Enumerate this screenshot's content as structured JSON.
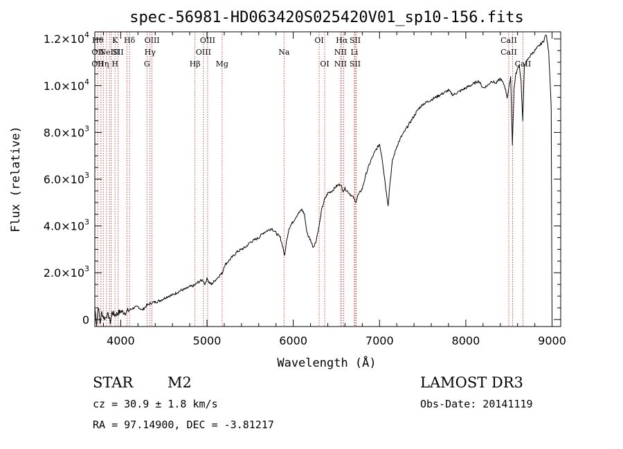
{
  "chart_data": {
    "type": "line",
    "title": "spec-56981-HD063420S025420V01_sp10-156.fits",
    "xlabel": "Wavelength (Å)",
    "ylabel": "Flux (relative)",
    "xlim": [
      3700,
      9100
    ],
    "ylim": [
      -300,
      12300
    ],
    "x_ticks": [
      4000,
      5000,
      6000,
      7000,
      8000,
      9000
    ],
    "x_tick_labels": [
      "4000",
      "5000",
      "6000",
      "7000",
      "8000",
      "9000"
    ],
    "y_ticks": [
      0,
      2000,
      4000,
      6000,
      8000,
      10000,
      12000
    ],
    "y_tick_labels": [
      {
        "mant": "0",
        "exp": ""
      },
      {
        "mant": "2.0×10",
        "exp": "3"
      },
      {
        "mant": "4.0×10",
        "exp": "3"
      },
      {
        "mant": "6.0×10",
        "exp": "3"
      },
      {
        "mant": "8.0×10",
        "exp": "3"
      },
      {
        "mant": "1.0×10",
        "exp": "4"
      },
      {
        "mant": "1.2×10",
        "exp": "4"
      }
    ],
    "line_color": "#000000",
    "marker_color": "#b22222",
    "series": [
      {
        "name": "flux",
        "x": [
          3700,
          3720,
          3740,
          3760,
          3780,
          3800,
          3820,
          3840,
          3860,
          3880,
          3900,
          3930,
          3960,
          4000,
          4050,
          4100,
          4150,
          4200,
          4250,
          4300,
          4350,
          4400,
          4450,
          4500,
          4550,
          4600,
          4650,
          4700,
          4750,
          4800,
          4850,
          4900,
          4950,
          4980,
          5000,
          5020,
          5050,
          5100,
          5150,
          5180,
          5200,
          5250,
          5300,
          5350,
          5400,
          5450,
          5500,
          5550,
          5600,
          5650,
          5700,
          5750,
          5800,
          5850,
          5880,
          5900,
          5920,
          5950,
          6000,
          6050,
          6100,
          6130,
          6150,
          6170,
          6200,
          6230,
          6260,
          6300,
          6330,
          6360,
          6400,
          6450,
          6500,
          6550,
          6570,
          6600,
          6650,
          6700,
          6720,
          6750,
          6800,
          6850,
          6900,
          6950,
          7000,
          7030,
          7060,
          7080,
          7100,
          7120,
          7150,
          7200,
          7250,
          7300,
          7350,
          7400,
          7450,
          7500,
          7550,
          7600,
          7650,
          7700,
          7750,
          7800,
          7850,
          7900,
          7950,
          8000,
          8050,
          8100,
          8150,
          8200,
          8250,
          8300,
          8350,
          8400,
          8450,
          8480,
          8500,
          8520,
          8540,
          8560,
          8580,
          8600,
          8620,
          8640,
          8660,
          8680,
          8700,
          8750,
          8800,
          8850,
          8900,
          8930,
          8960,
          8980,
          8990,
          9000
        ],
        "y": [
          500,
          -200,
          600,
          -150,
          300,
          100,
          50,
          200,
          150,
          -100,
          300,
          200,
          250,
          350,
          300,
          400,
          500,
          550,
          400,
          600,
          700,
          750,
          800,
          900,
          1000,
          1050,
          1150,
          1250,
          1300,
          1400,
          1450,
          1600,
          1700,
          1500,
          1800,
          1600,
          1500,
          1700,
          1900,
          2000,
          2300,
          2500,
          2700,
          2900,
          3000,
          3100,
          3300,
          3400,
          3500,
          3700,
          3800,
          3900,
          3700,
          3500,
          3100,
          2700,
          3300,
          3900,
          4200,
          4500,
          4700,
          4500,
          3900,
          3600,
          3400,
          3100,
          3300,
          4000,
          4700,
          5100,
          5400,
          5500,
          5700,
          5800,
          5500,
          5600,
          5400,
          5200,
          5000,
          5300,
          5600,
          6300,
          6800,
          7200,
          7500,
          6900,
          6000,
          5400,
          4900,
          5800,
          6800,
          7400,
          7800,
          8100,
          8400,
          8700,
          9000,
          9200,
          9300,
          9400,
          9500,
          9600,
          9700,
          9800,
          9600,
          9700,
          9800,
          9900,
          10000,
          10100,
          10200,
          9900,
          10000,
          10200,
          10100,
          10300,
          10000,
          9500,
          9900,
          10400,
          7500,
          9900,
          10500,
          10700,
          10900,
          10200,
          8500,
          10900,
          11000,
          11300,
          11500,
          11700,
          11900,
          12200,
          11500,
          10000,
          9000,
          -50
        ]
      }
    ],
    "annotations": [
      {
        "wave": 3734,
        "rows": [
          "Hθ",
          "OII",
          "OII"
        ]
      },
      {
        "wave": 3771,
        "rows": [
          "",
          "",
          ""
        ]
      },
      {
        "wave": 3798,
        "rows": [
          "",
          "",
          "Hη"
        ]
      },
      {
        "wave": 3835,
        "rows": [
          "",
          "",
          ""
        ]
      },
      {
        "wave": 3869,
        "rows": [
          "",
          "NeIII",
          ""
        ]
      },
      {
        "wave": 3889,
        "rows": [
          "",
          "",
          ""
        ]
      },
      {
        "wave": 3934,
        "rows": [
          "K",
          "",
          "H"
        ]
      },
      {
        "wave": 3969,
        "rows": [
          "",
          "SII",
          ""
        ]
      },
      {
        "wave": 4072,
        "rows": [
          "",
          "",
          ""
        ]
      },
      {
        "wave": 4102,
        "rows": [
          "Hδ",
          "",
          ""
        ]
      },
      {
        "wave": 4304,
        "rows": [
          "",
          "",
          "G"
        ]
      },
      {
        "wave": 4340,
        "rows": [
          "",
          "Hγ",
          ""
        ]
      },
      {
        "wave": 4363,
        "rows": [
          "OIII",
          "",
          ""
        ]
      },
      {
        "wave": 4861,
        "rows": [
          "",
          "",
          "Hβ"
        ]
      },
      {
        "wave": 4959,
        "rows": [
          "",
          "OIII",
          ""
        ]
      },
      {
        "wave": 5007,
        "rows": [
          "OIII",
          "",
          ""
        ]
      },
      {
        "wave": 5175,
        "rows": [
          "",
          "",
          "Mg"
        ]
      },
      {
        "wave": 5893,
        "rows": [
          "",
          "Na",
          ""
        ]
      },
      {
        "wave": 6300,
        "rows": [
          "OI",
          "",
          ""
        ]
      },
      {
        "wave": 6364,
        "rows": [
          "",
          "",
          "OI"
        ]
      },
      {
        "wave": 6548,
        "rows": [
          "",
          "NII",
          "NII"
        ]
      },
      {
        "wave": 6563,
        "rows": [
          "Hα",
          "",
          ""
        ]
      },
      {
        "wave": 6584,
        "rows": [
          "",
          "",
          ""
        ]
      },
      {
        "wave": 6708,
        "rows": [
          "",
          "Li",
          ""
        ]
      },
      {
        "wave": 6717,
        "rows": [
          "SII",
          "",
          "SII"
        ]
      },
      {
        "wave": 6731,
        "rows": [
          "",
          "",
          ""
        ]
      },
      {
        "wave": 8498,
        "rows": [
          "CaII",
          "CaII",
          ""
        ]
      },
      {
        "wave": 8542,
        "rows": [
          "",
          "",
          ""
        ]
      },
      {
        "wave": 8662,
        "rows": [
          "",
          "",
          "CaII"
        ]
      }
    ]
  },
  "info": {
    "class": "STAR",
    "subclass": "M2",
    "survey": "LAMOST DR3",
    "cz": "cz = 30.9 ± 1.8 km/s",
    "obs_date": "Obs-Date: 20141119",
    "radec": "RA =  97.14900, DEC =  -3.81217"
  }
}
